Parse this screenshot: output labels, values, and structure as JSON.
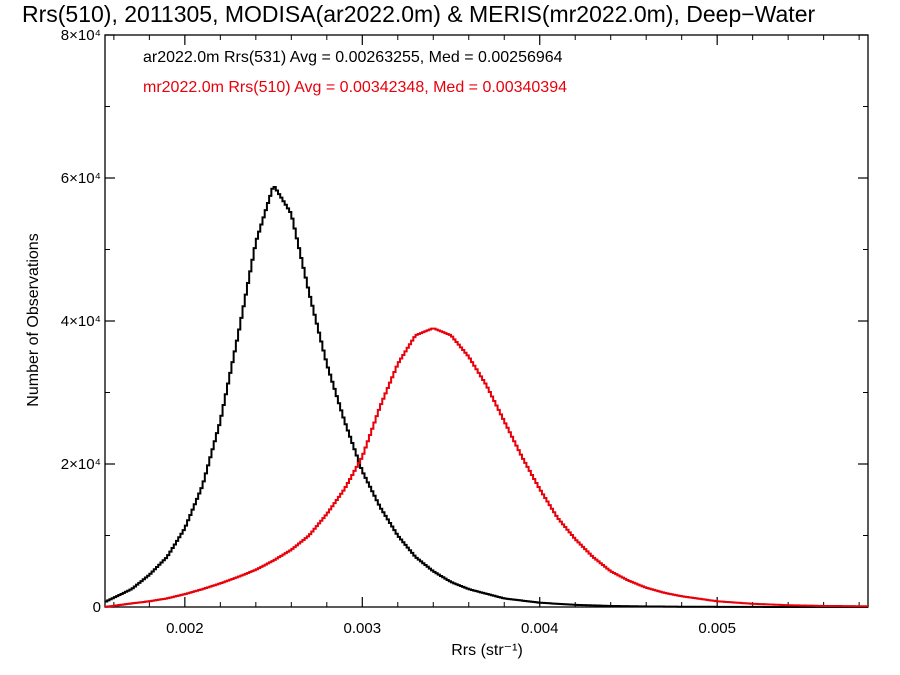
{
  "chart_data": {
    "type": "line",
    "title": "Rrs(510), 2011305, MODISA(ar2022.0m) & MERIS(mr2022.0m), Deep−Water",
    "xlabel": "Rrs (str⁻¹)",
    "ylabel": "Number of Observations",
    "xlim": [
      0.00155,
      0.00585
    ],
    "ylim": [
      0,
      80000
    ],
    "xticks": [
      {
        "value": 0.002,
        "label": "0.002"
      },
      {
        "value": 0.003,
        "label": "0.003"
      },
      {
        "value": 0.004,
        "label": "0.004"
      },
      {
        "value": 0.005,
        "label": "0.005"
      }
    ],
    "yticks": [
      {
        "value": 0,
        "label": "0"
      },
      {
        "value": 20000,
        "label": "2×10⁴"
      },
      {
        "value": 40000,
        "label": "4×10⁴"
      },
      {
        "value": 60000,
        "label": "6×10⁴"
      },
      {
        "value": 80000,
        "label": "8×10⁴"
      }
    ],
    "grid": false,
    "step": "histogram",
    "series": [
      {
        "name": "ar2022.0m Rrs(531)",
        "annotation": "ar2022.0m Rrs(531) Avg = 0.00263255, Med = 0.00256964",
        "color": "#000000",
        "x": [
          0.00155,
          0.0017,
          0.0018,
          0.0019,
          0.002,
          0.0021,
          0.0022,
          0.0023,
          0.0024,
          0.0025,
          0.0026,
          0.0027,
          0.0028,
          0.0029,
          0.003,
          0.0031,
          0.0032,
          0.0033,
          0.0034,
          0.0035,
          0.0036,
          0.0038,
          0.004,
          0.0042,
          0.0044,
          0.0046,
          0.0048,
          0.0052,
          0.00585
        ],
        "y": [
          700,
          2500,
          4500,
          7000,
          11000,
          17000,
          26000,
          38000,
          51000,
          59000,
          55000,
          44000,
          34000,
          26000,
          19000,
          14000,
          10000,
          7000,
          5000,
          3500,
          2500,
          1200,
          600,
          300,
          150,
          80,
          40,
          10,
          0
        ]
      },
      {
        "name": "mr2022.0m Rrs(510)",
        "annotation": "mr2022.0m Rrs(510) Avg = 0.00342348, Med = 0.00340394",
        "color": "#e8000b",
        "x": [
          0.00155,
          0.0017,
          0.0018,
          0.0019,
          0.002,
          0.0021,
          0.0022,
          0.0023,
          0.0024,
          0.0025,
          0.0026,
          0.0027,
          0.0028,
          0.0029,
          0.003,
          0.0031,
          0.0032,
          0.0033,
          0.0034,
          0.0035,
          0.0036,
          0.0037,
          0.0038,
          0.0039,
          0.004,
          0.0041,
          0.0042,
          0.0043,
          0.0044,
          0.0045,
          0.0046,
          0.0047,
          0.0048,
          0.005,
          0.0052,
          0.0054,
          0.0056,
          0.00585
        ],
        "y": [
          0,
          500,
          800,
          1200,
          1800,
          2500,
          3300,
          4200,
          5200,
          6500,
          8000,
          10000,
          13000,
          16500,
          21000,
          28000,
          34000,
          38000,
          39000,
          38000,
          35000,
          31000,
          26000,
          21000,
          16500,
          12500,
          9500,
          7000,
          5000,
          3700,
          2700,
          2000,
          1500,
          800,
          450,
          250,
          150,
          100
        ]
      }
    ]
  }
}
